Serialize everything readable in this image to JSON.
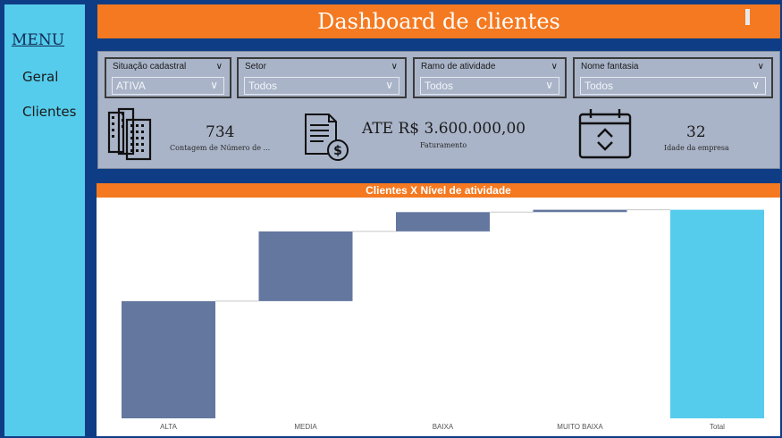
{
  "sidebar": {
    "menu_title": "MENU",
    "items": [
      {
        "label": "Geral"
      },
      {
        "label": "Clientes"
      }
    ]
  },
  "header": {
    "title": "Dashboard de clientes"
  },
  "filters": [
    {
      "label": "Situação cadastral",
      "value": "ATIVA"
    },
    {
      "label": "Setor",
      "value": "Todos"
    },
    {
      "label": "Ramo de atividade",
      "value": "Todos"
    },
    {
      "label": "Nome fantasia",
      "value": "Todos"
    }
  ],
  "kpis": [
    {
      "value": "734",
      "label": "Contagem de Número de ...",
      "icon": "buildings-icon"
    },
    {
      "value": "ATE R$ 3.600.000,00",
      "label": "Faturamento",
      "icon": "invoice-dollar-icon"
    },
    {
      "value": "32",
      "label": "Idade da empresa",
      "icon": "calendar-icon"
    }
  ],
  "colors": {
    "background": "#0f3d85",
    "accent": "#f47920",
    "sidebar": "#55ccec",
    "panel": "#a9b4c8",
    "bar": "#63779f",
    "total_bar": "#55ccec"
  },
  "chart_data": {
    "type": "waterfall",
    "title": "Clientes X Nível de atividade",
    "categories": [
      "ALTA",
      "MEDIA",
      "BAIXA",
      "MUITO BAIXA",
      "Total"
    ],
    "values": [
      395,
      235,
      65,
      8,
      703
    ],
    "ylim": [
      0,
      720
    ],
    "xlabel": "",
    "ylabel": "",
    "grid": false,
    "legend": "none"
  }
}
